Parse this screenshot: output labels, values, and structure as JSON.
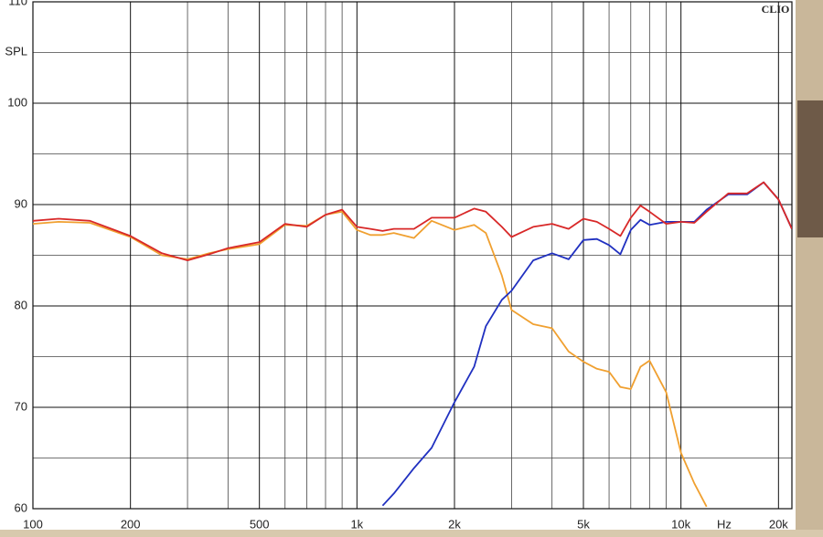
{
  "chart_data": {
    "type": "line",
    "brand": "CLIO",
    "ylabel": "SPL",
    "xlabel": "Hz",
    "log_x": true,
    "grid": true,
    "xlim": [
      100,
      22000
    ],
    "ylim": [
      60,
      110
    ],
    "xticks": [
      100,
      200,
      500,
      {
        "value": 1000,
        "label": "1k"
      },
      {
        "value": 2000,
        "label": "2k"
      },
      {
        "value": 5000,
        "label": "5k"
      },
      {
        "value": 10000,
        "label": "10k"
      },
      {
        "value": 20000,
        "label": "20k"
      }
    ],
    "xgrid": [
      300,
      400,
      600,
      700,
      800,
      900,
      3000,
      4000,
      6000,
      7000,
      8000,
      9000
    ],
    "yticks": [
      60,
      70,
      80,
      90,
      100,
      110
    ],
    "ygrid": [
      65,
      75,
      85,
      95,
      105
    ],
    "x": [
      100,
      120,
      150,
      200,
      250,
      300,
      350,
      400,
      500,
      600,
      700,
      800,
      900,
      1000,
      1100,
      1200,
      1300,
      1500,
      1700,
      2000,
      2300,
      2500,
      2800,
      3000,
      3500,
      4000,
      4500,
      5000,
      5500,
      6000,
      6500,
      7000,
      7500,
      8000,
      9000,
      10000,
      11000,
      12000,
      14000,
      16000,
      18000,
      20000,
      22000
    ],
    "series": [
      {
        "color": "#f0a030",
        "values": [
          88.1,
          88.3,
          88.2,
          86.8,
          85.0,
          84.6,
          85.2,
          85.6,
          86.1,
          88.0,
          87.9,
          89.0,
          89.3,
          87.5,
          87.0,
          87.0,
          87.2,
          86.7,
          88.4,
          87.5,
          88.0,
          87.2,
          83,
          79.6,
          78.2,
          77.8,
          75.5,
          74.5,
          73.8,
          73.5,
          72.0,
          71.8,
          74.0,
          74.6,
          71.5,
          65.5,
          62.5,
          60.2,
          null,
          null,
          null,
          null,
          null
        ]
      },
      {
        "color": "#2030c0",
        "values": [
          null,
          null,
          null,
          null,
          null,
          null,
          null,
          null,
          null,
          null,
          null,
          null,
          null,
          null,
          null,
          60.3,
          61.5,
          64,
          66,
          70.5,
          74,
          78,
          80.6,
          81.5,
          84.5,
          85.2,
          84.6,
          86.5,
          86.6,
          86.0,
          85.1,
          87.5,
          88.5,
          88,
          88.3,
          88.3,
          88.3,
          89.5,
          91,
          91,
          92.2,
          90.5,
          87.6
        ]
      },
      {
        "color": "#d82828",
        "values": [
          88.4,
          88.6,
          88.4,
          86.9,
          85.2,
          84.5,
          85.1,
          85.7,
          86.3,
          88.1,
          87.8,
          89,
          89.5,
          87.8,
          87.6,
          87.4,
          87.6,
          87.6,
          88.7,
          88.7,
          89.6,
          89.3,
          87.8,
          86.8,
          87.8,
          88.1,
          87.6,
          88.6,
          88.3,
          87.6,
          86.9,
          88.7,
          89.9,
          89.3,
          88.1,
          88.3,
          88.2,
          89.3,
          91.1,
          91.1,
          92.2,
          90.5,
          87.6
        ]
      }
    ]
  }
}
